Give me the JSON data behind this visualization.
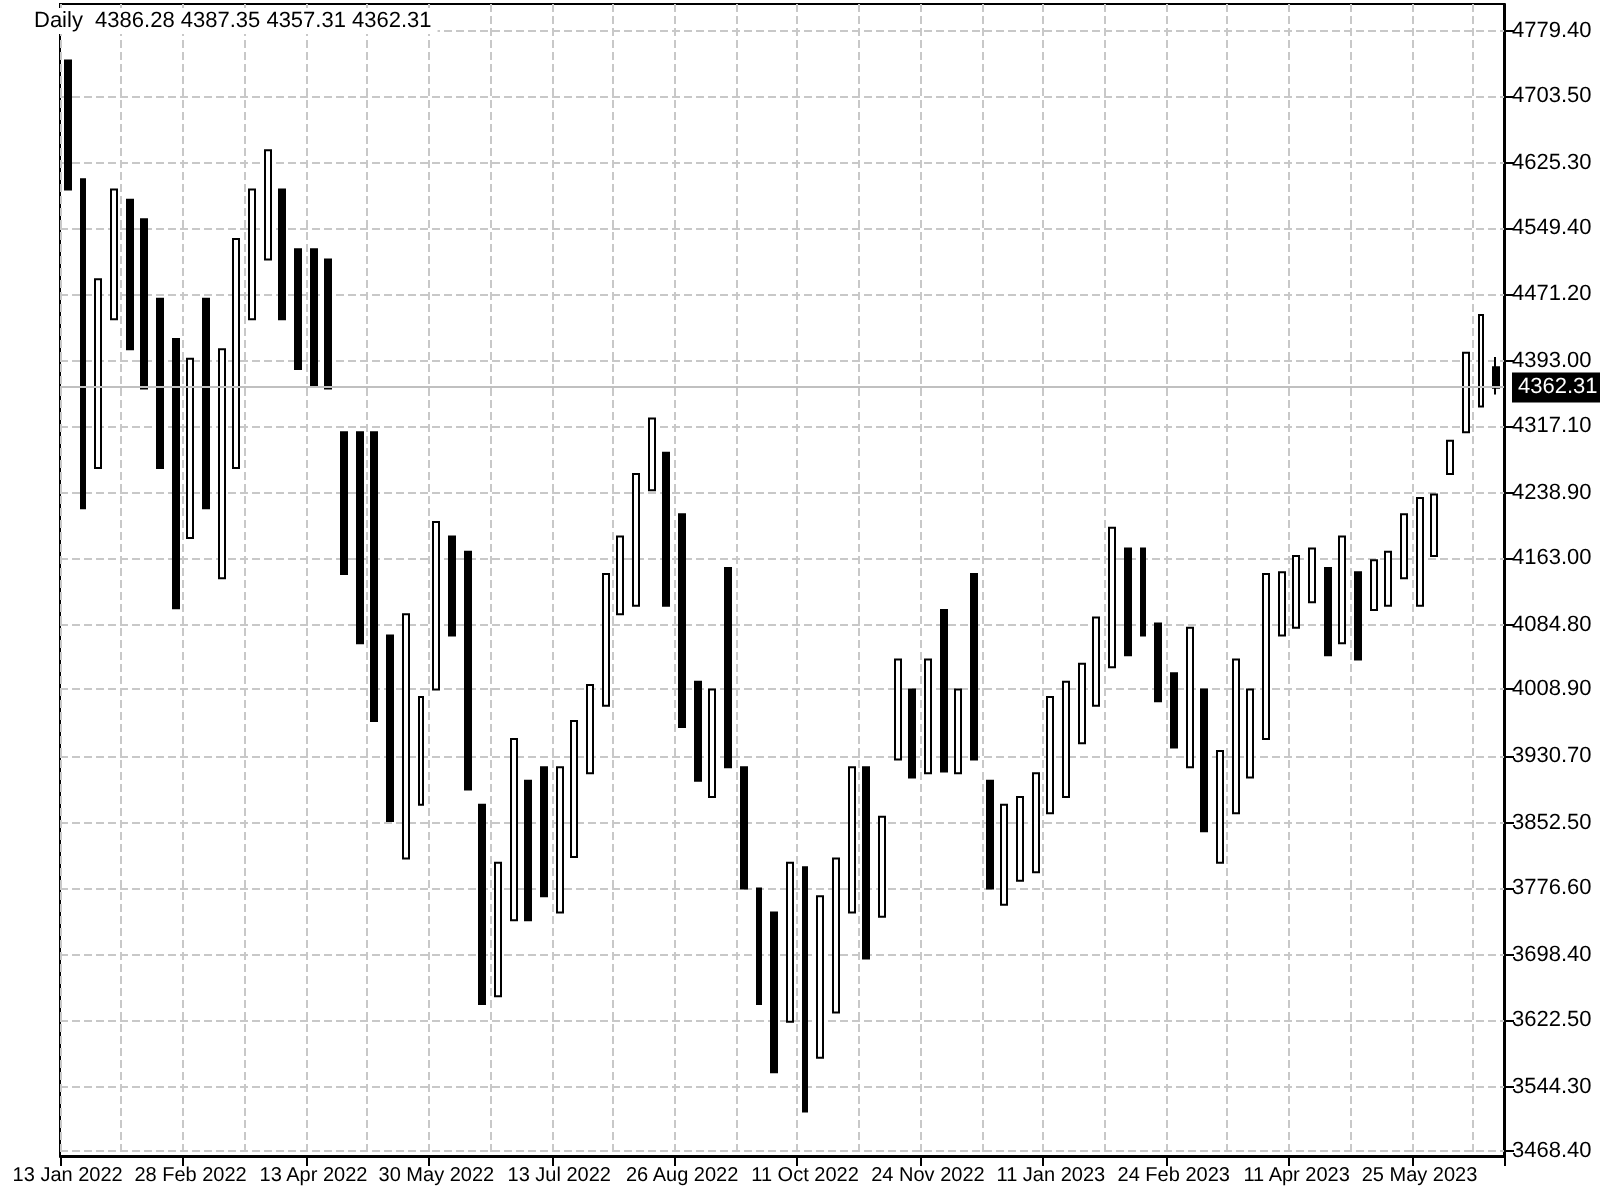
{
  "chart_data": {
    "type": "candlestick",
    "title": "Daily  4386.28 4387.35 4357.31 4362.31",
    "categories": [
      "13 Jan 2022",
      null,
      null,
      null,
      null,
      null,
      null,
      null,
      "28 Feb 2022",
      null,
      null,
      null,
      null,
      null,
      null,
      null,
      "13 Apr 2022",
      null,
      null,
      null,
      null,
      null,
      null,
      null,
      "30 May 2022",
      null,
      null,
      null,
      null,
      null,
      null,
      null,
      "13 Jul 2022",
      null,
      null,
      null,
      null,
      null,
      null,
      null,
      "26 Aug 2022",
      null,
      null,
      null,
      null,
      null,
      null,
      null,
      "11 Oct 2022",
      null,
      null,
      null,
      null,
      null,
      null,
      null,
      "24 Nov 2022",
      null,
      null,
      null,
      null,
      null,
      null,
      null,
      "11 Jan 2023",
      null,
      null,
      null,
      null,
      null,
      null,
      null,
      "24 Feb 2023",
      null,
      null,
      null,
      null,
      null,
      null,
      null,
      "11 Apr 2023",
      null,
      null,
      null,
      null,
      null,
      null,
      null,
      "25 May 2023",
      null,
      null,
      null,
      null,
      null
    ],
    "ohlc": [
      [
        4745,
        4745,
        4594,
        4594
      ],
      [
        4606,
        4606,
        4221,
        4221
      ],
      [
        4268,
        4489,
        4268,
        4489
      ],
      [
        4442,
        4594,
        4442,
        4594
      ],
      [
        4582,
        4582,
        4407,
        4407
      ],
      [
        4559,
        4559,
        4361,
        4361
      ],
      [
        4466,
        4466,
        4268,
        4268
      ],
      [
        4419,
        4419,
        4104,
        4104
      ],
      [
        4186,
        4396,
        4186,
        4396
      ],
      [
        4466,
        4466,
        4221,
        4221
      ],
      [
        4139,
        4407,
        4139,
        4407
      ],
      [
        4268,
        4536,
        4268,
        4536
      ],
      [
        4442,
        4594,
        4442,
        4594
      ],
      [
        4512,
        4640,
        4512,
        4640
      ],
      [
        4594,
        4594,
        4442,
        4442
      ],
      [
        4524,
        4524,
        4384,
        4384
      ],
      [
        4524,
        4524,
        4363,
        4363
      ],
      [
        4512,
        4512,
        4361,
        4361
      ],
      [
        4310,
        4310,
        4144,
        4144
      ],
      [
        4310,
        4310,
        4063,
        4063
      ],
      [
        4310,
        4310,
        3972,
        3972
      ],
      [
        4072,
        4072,
        3855,
        3855
      ],
      [
        3811,
        4097,
        3811,
        4097
      ],
      [
        3874,
        4000,
        3874,
        4000
      ],
      [
        4009,
        4205,
        4009,
        4205
      ],
      [
        4188,
        4188,
        4072,
        4072
      ],
      [
        4170,
        4170,
        3892,
        3892
      ],
      [
        3874,
        3874,
        3641,
        3641
      ],
      [
        3650,
        3806,
        3650,
        3806
      ],
      [
        3739,
        3951,
        3739,
        3951
      ],
      [
        3902,
        3902,
        3739,
        3739
      ],
      [
        3918,
        3918,
        3767,
        3767
      ],
      [
        3748,
        3918,
        3748,
        3918
      ],
      [
        3813,
        3972,
        3813,
        3972
      ],
      [
        3911,
        4014,
        3911,
        4014
      ],
      [
        3990,
        4144,
        3990,
        4144
      ],
      [
        4097,
        4188,
        4097,
        4188
      ],
      [
        4107,
        4261,
        4107,
        4261
      ],
      [
        4242,
        4326,
        4242,
        4326
      ],
      [
        4286,
        4286,
        4107,
        4107
      ],
      [
        4214,
        4214,
        3965,
        3965
      ],
      [
        4018,
        4018,
        3902,
        3902
      ],
      [
        3883,
        4009,
        3883,
        4009
      ],
      [
        4151,
        4151,
        3918,
        3918
      ],
      [
        3918,
        3918,
        3776,
        3776
      ],
      [
        3776,
        3776,
        3641,
        3641
      ],
      [
        3748,
        3748,
        3561,
        3561
      ],
      [
        3620,
        3806,
        3620,
        3806
      ],
      [
        3801,
        3801,
        3515,
        3515
      ],
      [
        3578,
        3767,
        3578,
        3767
      ],
      [
        3631,
        3811,
        3631,
        3811
      ],
      [
        3748,
        3918,
        3748,
        3918
      ],
      [
        3918,
        3918,
        3694,
        3694
      ],
      [
        3743,
        3860,
        3743,
        3860
      ],
      [
        3927,
        4044,
        3927,
        4044
      ],
      [
        4009,
        4009,
        3906,
        3906
      ],
      [
        3911,
        4044,
        3911,
        4044
      ],
      [
        4102,
        4102,
        3913,
        3913
      ],
      [
        3911,
        4009,
        3911,
        4009
      ],
      [
        4144,
        4144,
        3927,
        3927
      ],
      [
        3902,
        3902,
        3776,
        3776
      ],
      [
        3757,
        3874,
        3757,
        3874
      ],
      [
        3785,
        3883,
        3785,
        3883
      ],
      [
        3795,
        3911,
        3795,
        3911
      ],
      [
        3864,
        4000,
        3864,
        4000
      ],
      [
        3883,
        4018,
        3883,
        4018
      ],
      [
        3946,
        4039,
        3946,
        4039
      ],
      [
        3990,
        4093,
        3990,
        4093
      ],
      [
        4035,
        4198,
        4035,
        4198
      ],
      [
        4174,
        4174,
        4049,
        4049
      ],
      [
        4174,
        4174,
        4072,
        4072
      ],
      [
        4086,
        4086,
        3995,
        3995
      ],
      [
        4028,
        4028,
        3941,
        3941
      ],
      [
        3918,
        4081,
        3918,
        4081
      ],
      [
        4009,
        4009,
        3843,
        3843
      ],
      [
        3806,
        3937,
        3806,
        3937
      ],
      [
        3864,
        4044,
        3864,
        4044
      ],
      [
        3906,
        4009,
        3906,
        4009
      ],
      [
        3951,
        4144,
        3951,
        4144
      ],
      [
        4072,
        4146,
        4072,
        4146
      ],
      [
        4081,
        4165,
        4081,
        4165
      ],
      [
        4111,
        4174,
        4111,
        4174
      ],
      [
        4151,
        4151,
        4049,
        4049
      ],
      [
        4063,
        4188,
        4063,
        4188
      ],
      [
        4146,
        4146,
        4044,
        4044
      ],
      [
        4102,
        4160,
        4102,
        4160
      ],
      [
        4107,
        4170,
        4107,
        4170
      ],
      [
        4139,
        4214,
        4139,
        4214
      ],
      [
        4107,
        4233,
        4107,
        4233
      ],
      [
        4165,
        4237,
        4165,
        4237
      ],
      [
        4261,
        4300,
        4261,
        4300
      ],
      [
        4310,
        4403,
        4310,
        4403
      ],
      [
        4340,
        4447,
        4340,
        4447
      ],
      [
        4386,
        4398,
        4354,
        4362
      ]
    ],
    "color": "#000000",
    "ylim": [
      3463,
      4811
    ],
    "yticks": [
      {
        "value": 3468.4,
        "label": "3468.40"
      },
      {
        "value": 3544.3,
        "label": "3544.30"
      },
      {
        "value": 3622.5,
        "label": "3622.50"
      },
      {
        "value": 3698.4,
        "label": "3698.40"
      },
      {
        "value": 3776.6,
        "label": "3776.60"
      },
      {
        "value": 3852.5,
        "label": "3852.50"
      },
      {
        "value": 3930.7,
        "label": "3930.70"
      },
      {
        "value": 4008.9,
        "label": "4008.90"
      },
      {
        "value": 4084.8,
        "label": "4084.80"
      },
      {
        "value": 4163,
        "label": "4163.00"
      },
      {
        "value": 4238.9,
        "label": "4238.90"
      },
      {
        "value": 4317.1,
        "label": "4317.10"
      },
      {
        "value": 4393,
        "label": "4393.00"
      },
      {
        "value": 4471.2,
        "label": "4471.20"
      },
      {
        "value": 4549.4,
        "label": "4549.40"
      },
      {
        "value": 4625.3,
        "label": "4625.30"
      },
      {
        "value": 4703.5,
        "label": "4703.50"
      },
      {
        "value": 4779.4,
        "label": "4779.40"
      }
    ],
    "ref_lines": [
      {
        "axis": "y",
        "value": 4362.31,
        "label": "4362.31",
        "color": "#c0c0c0"
      }
    ],
    "grid": true
  }
}
